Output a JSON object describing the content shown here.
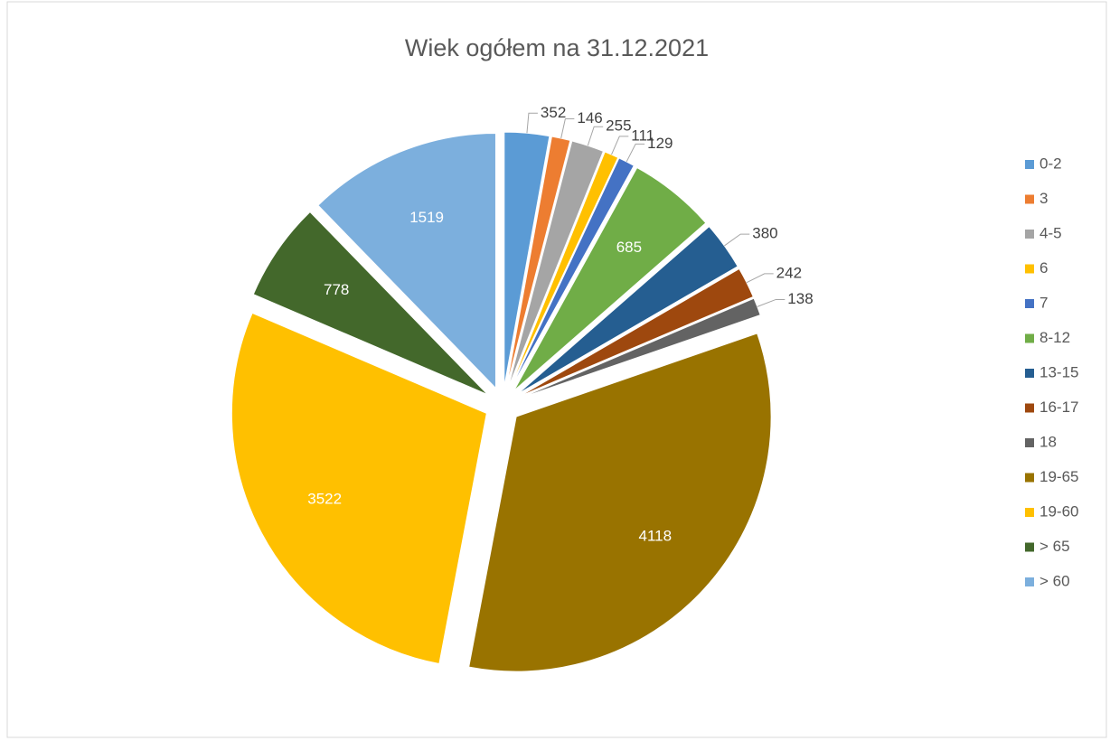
{
  "chart_data": {
    "type": "pie",
    "title": "Wiek ogółem na 31.12.2021",
    "categories": [
      "0-2",
      "3",
      "4-5",
      "6",
      "7",
      "8-12",
      "13-15",
      "16-17",
      "18",
      "19-65",
      "19-60",
      "> 65",
      "> 60"
    ],
    "values": [
      352,
      146,
      255,
      111,
      129,
      685,
      380,
      242,
      138,
      4118,
      3522,
      778,
      1519
    ],
    "colors": [
      "#5B9BD5",
      "#ED7D31",
      "#A5A5A5",
      "#FFC000",
      "#4472C4",
      "#70AD47",
      "#255E91",
      "#9E480E",
      "#636363",
      "#997300",
      "#FFC000",
      "#43682B",
      "#7CAFDD"
    ],
    "legend": "right"
  }
}
